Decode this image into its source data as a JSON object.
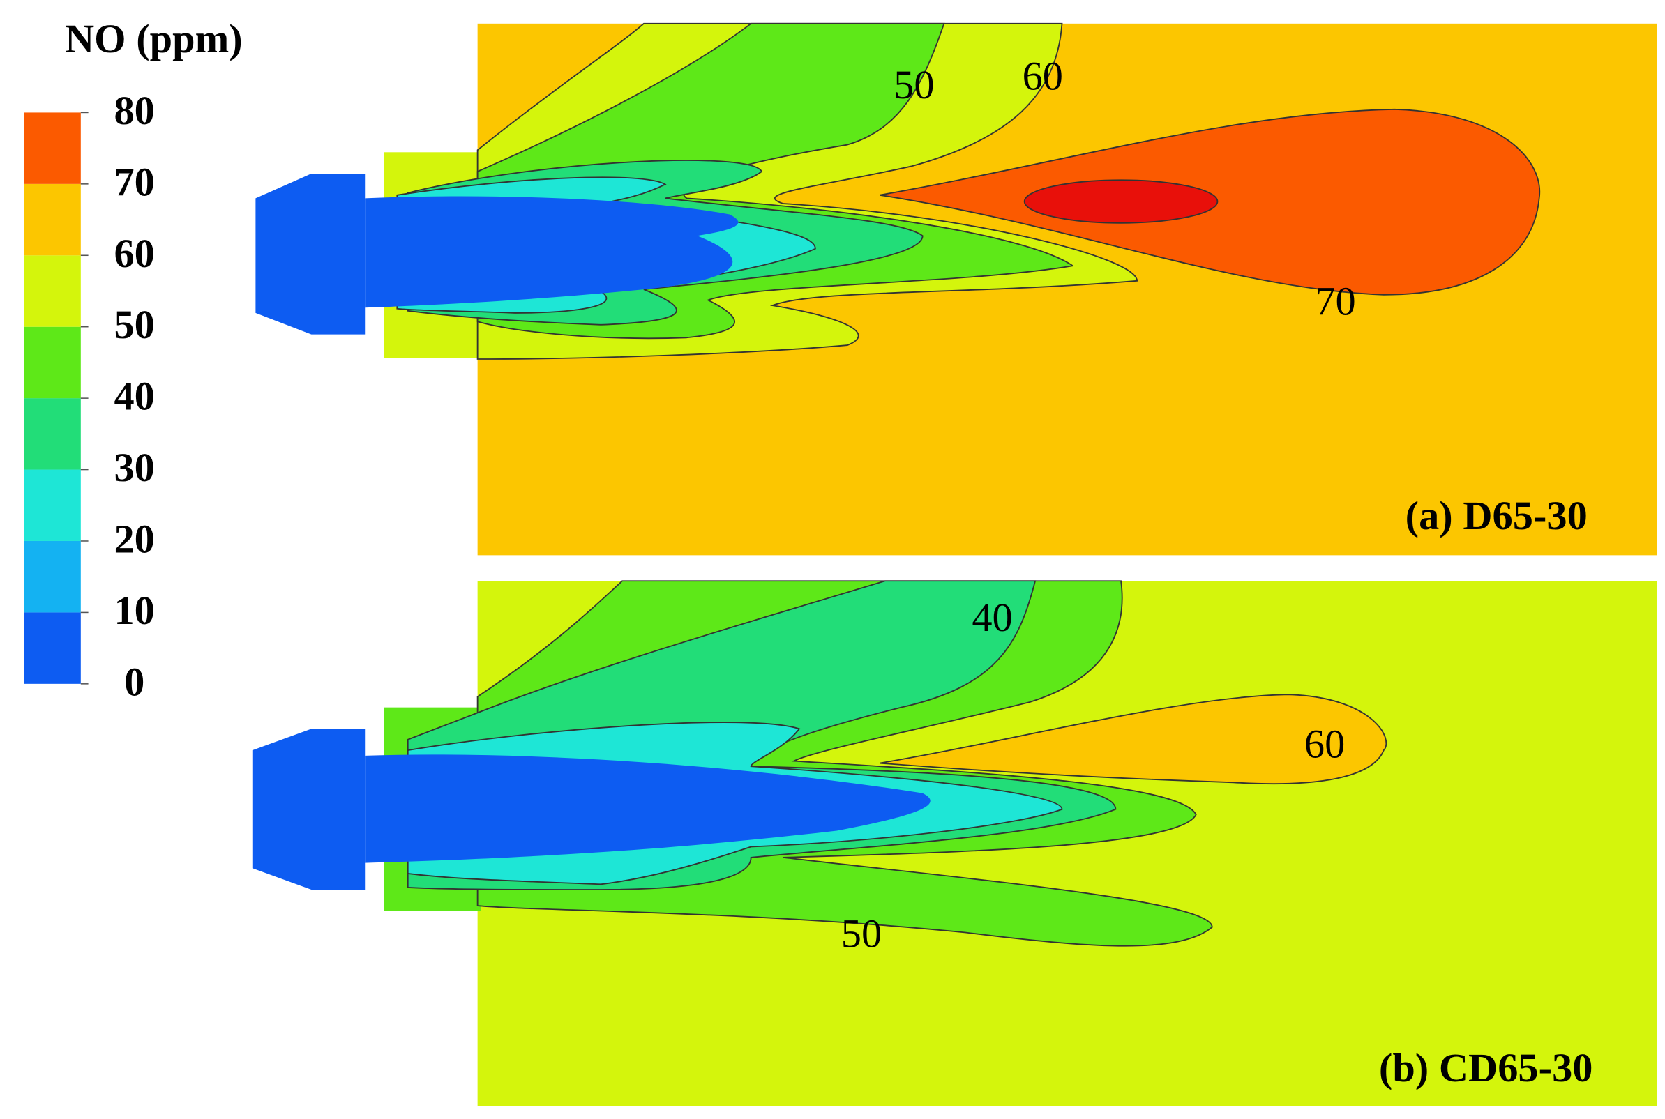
{
  "chart_data": {
    "type": "contour",
    "colorbar": {
      "title": "NO (ppm)",
      "ticks": [
        0,
        10,
        20,
        30,
        40,
        50,
        60,
        70,
        80
      ],
      "colors": [
        "#0d5cf2",
        "#14b2f2",
        "#1ee6d6",
        "#22dd78",
        "#5ee818",
        "#d4f50c",
        "#fcc600",
        "#fb5a00"
      ]
    },
    "panels": [
      {
        "label": "(a) D65-30",
        "contour_labels": [
          50,
          60,
          70
        ]
      },
      {
        "label": "(b) CD65-30",
        "contour_labels": [
          40,
          60,
          50
        ]
      }
    ]
  }
}
